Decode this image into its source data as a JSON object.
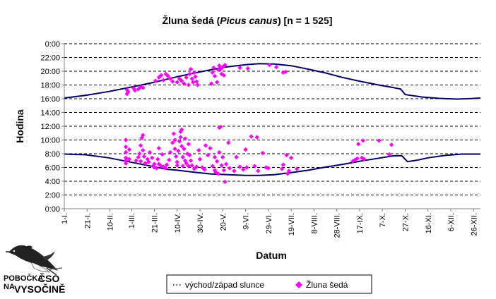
{
  "chart_data": {
    "type": "scatter",
    "title_prefix": "Žluna šedá (",
    "title_species": "Picus canus",
    "title_suffix": ") [n = 1 525]",
    "xlabel": "Datum",
    "ylabel": "Hodina",
    "x_tick_labels": [
      "1-I.",
      "21-I.",
      "10-II.",
      "1-III.",
      "21-III.",
      "10-IV.",
      "30-IV.",
      "20-V.",
      "9-VI.",
      "29-VI.",
      "19-VII.",
      "8-VIII.",
      "28-VIII.",
      "17-IX.",
      "7-X.",
      "27-X.",
      "16-XI.",
      "6-XII.",
      "26-XII."
    ],
    "x_tick_days": [
      1,
      21,
      41,
      60,
      80,
      100,
      120,
      140,
      160,
      180,
      200,
      220,
      240,
      260,
      280,
      300,
      320,
      340,
      360
    ],
    "xlim": [
      1,
      366
    ],
    "y_tick_labels": [
      "0:00",
      "2:00",
      "4:00",
      "6:00",
      "8:00",
      "10:00",
      "12:00",
      "14:00",
      "16:00",
      "18:00",
      "20:00",
      "22:00",
      "0:00"
    ],
    "ylim": [
      0,
      24
    ],
    "grid": "horizontal dashed",
    "legend_position": "bottom",
    "colors": {
      "line": "#000066",
      "points": "#ff00ff",
      "grid": "#000000"
    },
    "series": [
      {
        "name": "východ/západ slunce",
        "kind": "line",
        "sunrise": [
          [
            1,
            7.95
          ],
          [
            20,
            7.85
          ],
          [
            40,
            7.4
          ],
          [
            60,
            6.75
          ],
          [
            80,
            6.1
          ],
          [
            90,
            5.75
          ],
          [
            100,
            5.6
          ],
          [
            115,
            5.3
          ],
          [
            130,
            5.05
          ],
          [
            145,
            4.95
          ],
          [
            160,
            4.85
          ],
          [
            172,
            4.85
          ],
          [
            185,
            4.95
          ],
          [
            200,
            5.25
          ],
          [
            215,
            5.6
          ],
          [
            230,
            6.05
          ],
          [
            245,
            6.45
          ],
          [
            260,
            6.9
          ],
          [
            275,
            7.3
          ],
          [
            290,
            7.7
          ],
          [
            297,
            7.7
          ],
          [
            302,
            6.85
          ],
          [
            310,
            7.05
          ],
          [
            320,
            7.4
          ],
          [
            335,
            7.75
          ],
          [
            350,
            7.95
          ],
          [
            366,
            7.95
          ]
        ],
        "sunset": [
          [
            1,
            16.1
          ],
          [
            20,
            16.5
          ],
          [
            40,
            17.05
          ],
          [
            60,
            17.7
          ],
          [
            80,
            18.4
          ],
          [
            100,
            19.2
          ],
          [
            120,
            19.9
          ],
          [
            140,
            20.55
          ],
          [
            160,
            20.95
          ],
          [
            172,
            21.1
          ],
          [
            185,
            21.05
          ],
          [
            200,
            20.8
          ],
          [
            215,
            20.3
          ],
          [
            230,
            19.75
          ],
          [
            245,
            19.1
          ],
          [
            260,
            18.55
          ],
          [
            275,
            18.05
          ],
          [
            290,
            17.6
          ],
          [
            296,
            17.4
          ],
          [
            300,
            16.6
          ],
          [
            315,
            16.25
          ],
          [
            330,
            16.05
          ],
          [
            345,
            15.95
          ],
          [
            355,
            16.0
          ],
          [
            366,
            16.1
          ]
        ]
      },
      {
        "name": "Žluna šedá",
        "kind": "scatter",
        "points": [
          [
            55,
            7.0
          ],
          [
            55,
            7.4
          ],
          [
            55,
            8.2
          ],
          [
            55,
            9.0
          ],
          [
            55,
            10.0
          ],
          [
            55,
            6.6
          ],
          [
            58,
            7.2
          ],
          [
            58,
            8.6
          ],
          [
            62,
            17.5
          ],
          [
            56,
            17.3
          ],
          [
            57,
            17.0
          ],
          [
            56,
            16.7
          ],
          [
            63,
            17.2
          ],
          [
            66,
            17.4
          ],
          [
            68,
            17.7
          ],
          [
            70,
            17.6
          ],
          [
            64,
            7.0
          ],
          [
            66,
            7.5
          ],
          [
            67,
            8.0
          ],
          [
            68,
            6.9
          ],
          [
            68,
            9.2
          ],
          [
            69,
            10.3
          ],
          [
            70,
            10.7
          ],
          [
            70,
            8.5
          ],
          [
            71,
            7.6
          ],
          [
            72,
            6.6
          ],
          [
            74,
            7.2
          ],
          [
            75,
            6.8
          ],
          [
            76,
            8.2
          ],
          [
            78,
            7.4
          ],
          [
            79,
            6.2
          ],
          [
            80,
            6.5
          ],
          [
            80,
            6.0
          ],
          [
            82,
            5.9
          ],
          [
            83,
            7.2
          ],
          [
            84,
            8.8
          ],
          [
            84,
            6.5
          ],
          [
            86,
            6.2
          ],
          [
            87,
            7.9
          ],
          [
            88,
            6.1
          ],
          [
            90,
            5.9
          ],
          [
            91,
            6.4
          ],
          [
            93,
            7.1
          ],
          [
            94,
            8.2
          ],
          [
            96,
            9.6
          ],
          [
            97,
            10.9
          ],
          [
            98,
            10.0
          ],
          [
            98,
            8.7
          ],
          [
            99,
            7.6
          ],
          [
            100,
            6.8
          ],
          [
            100,
            6.3
          ],
          [
            101,
            8.4
          ],
          [
            102,
            9.8
          ],
          [
            103,
            11.2
          ],
          [
            103,
            10.4
          ],
          [
            104,
            11.5
          ],
          [
            104,
            9.1
          ],
          [
            105,
            7.5
          ],
          [
            105,
            6.2
          ],
          [
            106,
            8.7
          ],
          [
            107,
            10.2
          ],
          [
            107,
            7.0
          ],
          [
            108,
            6.6
          ],
          [
            109,
            8.0
          ],
          [
            110,
            9.4
          ],
          [
            110,
            6.2
          ],
          [
            111,
            7.8
          ],
          [
            112,
            7.0
          ],
          [
            113,
            6.3
          ],
          [
            115,
            5.8
          ],
          [
            117,
            6.1
          ],
          [
            119,
            8.5
          ],
          [
            120,
            7.2
          ],
          [
            122,
            6.0
          ],
          [
            124,
            5.7
          ],
          [
            125,
            9.2
          ],
          [
            127,
            7.8
          ],
          [
            129,
            8.8
          ],
          [
            131,
            6.2
          ],
          [
            133,
            7.5
          ],
          [
            133,
            5.6
          ],
          [
            134,
            5.3
          ],
          [
            135,
            6.9
          ],
          [
            136,
            5.1
          ],
          [
            137,
            8.2
          ],
          [
            137,
            11.8
          ],
          [
            138,
            11.9
          ],
          [
            139,
            6.3
          ],
          [
            140,
            7.5
          ],
          [
            141,
            5.6
          ],
          [
            142,
            3.9
          ],
          [
            143,
            6.5
          ],
          [
            145,
            9.6
          ],
          [
            146,
            5.9
          ],
          [
            150,
            5.5
          ],
          [
            152,
            7.5
          ],
          [
            155,
            6.1
          ],
          [
            158,
            5.7
          ],
          [
            160,
            8.6
          ],
          [
            161,
            6.0
          ],
          [
            165,
            10.5
          ],
          [
            168,
            6.2
          ],
          [
            170,
            10.4
          ],
          [
            171,
            5.5
          ],
          [
            175,
            8.1
          ],
          [
            178,
            6.0
          ],
          [
            180,
            5.9
          ],
          [
            192,
            5.8
          ],
          [
            193,
            6.4
          ],
          [
            196,
            7.8
          ],
          [
            197,
            5.1
          ],
          [
            198,
            5.5
          ],
          [
            200,
            7.4
          ],
          [
            205,
            5.8
          ],
          [
            254,
            6.9
          ],
          [
            256,
            7.1
          ],
          [
            258,
            7.3
          ],
          [
            259,
            9.4
          ],
          [
            262,
            7.4
          ],
          [
            263,
            9.9
          ],
          [
            264,
            7.2
          ],
          [
            277,
            9.9
          ],
          [
            286,
            7.9
          ],
          [
            288,
            9.3
          ],
          [
            81,
            18.6
          ],
          [
            84,
            19.1
          ],
          [
            86,
            19.4
          ],
          [
            88,
            18.7
          ],
          [
            90,
            19.6
          ],
          [
            92,
            19.3
          ],
          [
            94,
            18.9
          ],
          [
            96,
            18.5
          ],
          [
            100,
            18.4
          ],
          [
            102,
            18.9
          ],
          [
            104,
            18.6
          ],
          [
            106,
            18.2
          ],
          [
            108,
            19.1
          ],
          [
            110,
            18.0
          ],
          [
            111,
            19.6
          ],
          [
            112,
            20.3
          ],
          [
            113,
            18.9
          ],
          [
            114,
            18.4
          ],
          [
            115,
            19.8
          ],
          [
            116,
            19.2
          ],
          [
            117,
            18.5
          ],
          [
            118,
            18.0
          ],
          [
            130,
            18.2
          ],
          [
            131,
            19.8
          ],
          [
            132,
            20.5
          ],
          [
            133,
            19.3
          ],
          [
            135,
            18.4
          ],
          [
            136,
            20.2
          ],
          [
            137,
            20.8
          ],
          [
            138,
            20.3
          ],
          [
            139,
            19.6
          ],
          [
            140,
            20.6
          ],
          [
            141,
            19.4
          ],
          [
            142,
            20.9
          ],
          [
            155,
            20.5
          ],
          [
            162,
            20.4
          ],
          [
            181,
            20.9
          ],
          [
            187,
            20.6
          ],
          [
            193,
            19.8
          ],
          [
            195,
            19.9
          ]
        ]
      }
    ]
  },
  "logo": {
    "line1": "POBOČKA",
    "line2": "NA",
    "line3": "ČSO",
    "line4": "VYSOČINĚ"
  }
}
